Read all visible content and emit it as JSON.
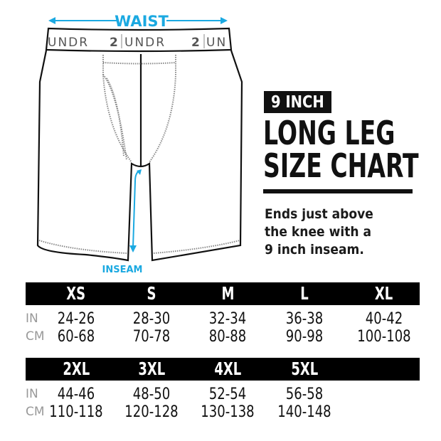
{
  "illustration": {
    "waist_label": "WAIST",
    "inseam_label": "INSEAM",
    "waistband_text": [
      "UNDR",
      "2",
      "UNDR",
      "2",
      "UN"
    ],
    "accent_color": "#1ba9e1"
  },
  "heading": {
    "tag": "9 INCH",
    "line1": "LONG LEG",
    "line2": "SIZE CHART"
  },
  "description": [
    "Ends just above",
    "the knee with a",
    "9 inch inseam."
  ],
  "units": {
    "in": "IN",
    "cm": "CM"
  },
  "size_table": [
    {
      "sizes": [
        {
          "size": "XS",
          "in": "24-26",
          "cm": "60-68"
        },
        {
          "size": "S",
          "in": "28-30",
          "cm": "70-78"
        },
        {
          "size": "M",
          "in": "32-34",
          "cm": "80-88"
        },
        {
          "size": "L",
          "in": "36-38",
          "cm": "90-98"
        },
        {
          "size": "XL",
          "in": "40-42",
          "cm": "100-108"
        }
      ]
    },
    {
      "sizes": [
        {
          "size": "2XL",
          "in": "44-46",
          "cm": "110-118"
        },
        {
          "size": "3XL",
          "in": "48-50",
          "cm": "120-128"
        },
        {
          "size": "4XL",
          "in": "52-54",
          "cm": "130-138"
        },
        {
          "size": "5XL",
          "in": "56-58",
          "cm": "140-148"
        }
      ]
    }
  ]
}
